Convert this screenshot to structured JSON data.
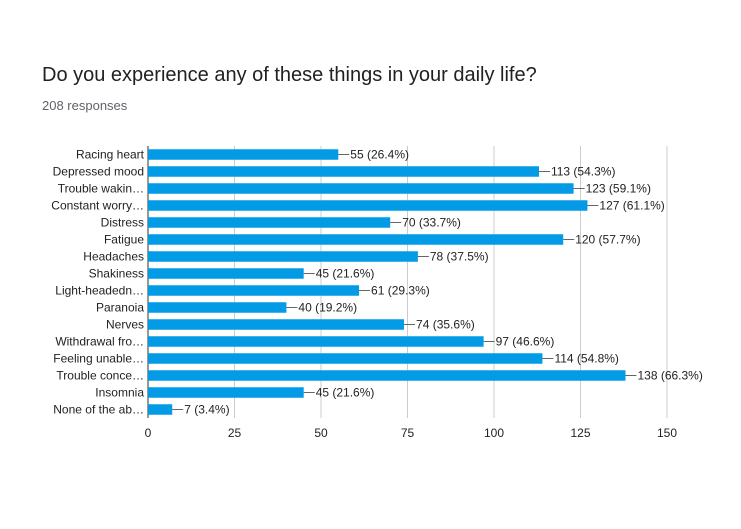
{
  "question": {
    "title": "Do you experience any of these things in your daily life?",
    "responses": "208 responses"
  },
  "colors": {
    "bar": "#039be5",
    "grid": "#cccccc",
    "axis": "#333333",
    "text": "#222222"
  },
  "chart_data": {
    "type": "bar",
    "orientation": "horizontal",
    "title": "Do you experience any of these things in your daily life?",
    "subtitle": "208 responses",
    "categories": [
      "Racing heart",
      "Depressed mood",
      "Trouble wakin…",
      "Constant worry…",
      "Distress",
      "Fatigue",
      "Headaches",
      "Shakiness",
      "Light-headedn…",
      "Paranoia",
      "Nerves",
      "Withdrawal fro…",
      "Feeling unable…",
      "Trouble conce…",
      "Insomnia",
      "None of the ab…"
    ],
    "values": [
      55,
      113,
      123,
      127,
      70,
      120,
      78,
      45,
      61,
      40,
      74,
      97,
      114,
      138,
      45,
      7
    ],
    "data_labels": [
      "55 (26.4%)",
      "113 (54.3%)",
      "123 (59.1%)",
      "127 (61.1%)",
      "70 (33.7%)",
      "120 (57.7%)",
      "78 (37.5%)",
      "45 (21.6%)",
      "61 (29.3%)",
      "40 (19.2%)",
      "74 (35.6%)",
      "97 (46.6%)",
      "114 (54.8%)",
      "138 (66.3%)",
      "45 (21.6%)",
      "7 (3.4%)"
    ],
    "xlim": [
      0,
      150
    ],
    "xticks": [
      0,
      25,
      50,
      75,
      100,
      125,
      150
    ],
    "xtick_labels": [
      "0",
      "25",
      "50",
      "75",
      "100",
      "125",
      "150"
    ],
    "grid": true,
    "legend": "none",
    "xlabel": "",
    "ylabel": ""
  }
}
